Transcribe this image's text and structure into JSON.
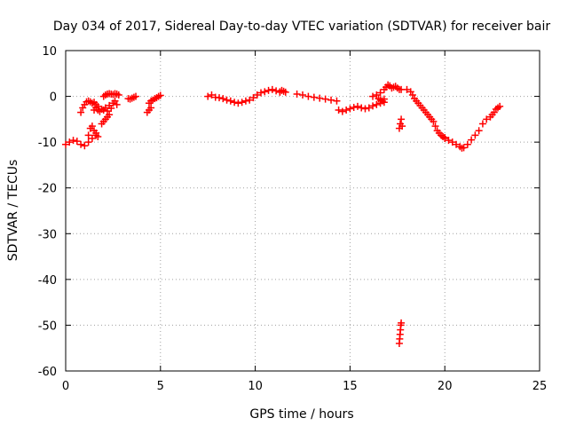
{
  "chart_data": {
    "type": "scatter",
    "title": "Day 034 of 2017, Sidereal Day-to-day VTEC variation (SDTVAR) for receiver bair",
    "xlabel": "GPS time / hours",
    "ylabel": "SDTVAR / TECUs",
    "xlim": [
      0,
      25
    ],
    "ylim": [
      -60,
      10
    ],
    "xticks": [
      0,
      5,
      10,
      15,
      20,
      25
    ],
    "yticks": [
      10,
      0,
      -10,
      -20,
      -30,
      -40,
      -50,
      -60
    ],
    "xtick_labels": [
      "0",
      "5",
      "10",
      "15",
      "20",
      "25"
    ],
    "ytick_labels": [
      "10",
      "0",
      "-10",
      "-20",
      "-30",
      "-40",
      "-50",
      "-60"
    ],
    "grid": true,
    "marker": "+",
    "color": "#ff0000",
    "series_segments": [
      [
        [
          0.0,
          -10.5
        ],
        [
          0.2,
          -10.0
        ],
        [
          0.4,
          -9.6
        ],
        [
          0.6,
          -9.8
        ],
        [
          0.8,
          -10.5
        ],
        [
          1.0,
          -10.8
        ],
        [
          1.2,
          -10.0
        ],
        [
          1.4,
          -9.2
        ],
        [
          1.6,
          -8.5
        ],
        [
          1.7,
          -8.8
        ]
      ],
      [
        [
          0.8,
          -3.5
        ],
        [
          0.9,
          -2.5
        ],
        [
          1.0,
          -1.8
        ],
        [
          1.1,
          -1.2
        ],
        [
          1.2,
          -1.0
        ],
        [
          1.3,
          -1.2
        ],
        [
          1.4,
          -1.5
        ],
        [
          1.5,
          -1.3
        ],
        [
          1.6,
          -1.8
        ],
        [
          1.7,
          -2.2
        ]
      ],
      [
        [
          1.2,
          -8.5
        ],
        [
          1.3,
          -7.0
        ],
        [
          1.4,
          -6.5
        ],
        [
          1.5,
          -7.5
        ],
        [
          1.6,
          -8.0
        ]
      ],
      [
        [
          1.5,
          -3.0
        ],
        [
          1.6,
          -2.5
        ],
        [
          1.7,
          -3.0
        ],
        [
          1.8,
          -3.3
        ],
        [
          1.9,
          -2.8
        ],
        [
          2.0,
          -3.0
        ],
        [
          2.1,
          -2.5
        ],
        [
          2.2,
          -3.2
        ],
        [
          2.3,
          -2.0
        ],
        [
          2.4,
          -2.6
        ],
        [
          2.5,
          -1.5
        ],
        [
          2.6,
          -1.0
        ],
        [
          2.7,
          -1.8
        ]
      ],
      [
        [
          1.9,
          -6.0
        ],
        [
          2.0,
          -5.5
        ],
        [
          2.1,
          -5.0
        ],
        [
          2.2,
          -4.5
        ],
        [
          2.3,
          -4.0
        ]
      ],
      [
        [
          2.0,
          0.0
        ],
        [
          2.1,
          0.3
        ],
        [
          2.2,
          0.5
        ],
        [
          2.3,
          0.6
        ],
        [
          2.4,
          0.5
        ],
        [
          2.5,
          0.4
        ],
        [
          2.6,
          0.6
        ],
        [
          2.7,
          0.5
        ],
        [
          2.8,
          0.3
        ]
      ],
      [
        [
          3.3,
          -0.5
        ],
        [
          3.4,
          -0.6
        ],
        [
          3.5,
          -0.4
        ],
        [
          3.6,
          -0.2
        ],
        [
          3.7,
          0.0
        ]
      ],
      [
        [
          4.3,
          -3.5
        ],
        [
          4.4,
          -3.0
        ],
        [
          4.5,
          -2.5
        ],
        [
          4.4,
          -1.5
        ],
        [
          4.5,
          -1.0
        ],
        [
          4.6,
          -0.8
        ],
        [
          4.7,
          -0.5
        ],
        [
          4.8,
          -0.3
        ],
        [
          4.9,
          0.0
        ],
        [
          5.0,
          0.2
        ]
      ],
      [
        [
          7.5,
          0.0
        ],
        [
          7.7,
          0.3
        ],
        [
          7.9,
          -0.2
        ],
        [
          8.1,
          -0.3
        ],
        [
          8.3,
          -0.5
        ],
        [
          8.5,
          -0.8
        ],
        [
          8.7,
          -1.0
        ],
        [
          8.9,
          -1.3
        ],
        [
          9.1,
          -1.5
        ],
        [
          9.3,
          -1.3
        ],
        [
          9.5,
          -1.0
        ],
        [
          9.7,
          -0.8
        ],
        [
          9.9,
          -0.3
        ],
        [
          10.1,
          0.3
        ],
        [
          10.3,
          0.8
        ],
        [
          10.5,
          1.0
        ],
        [
          10.7,
          1.3
        ],
        [
          10.9,
          1.5
        ],
        [
          11.1,
          1.2
        ],
        [
          11.3,
          0.9
        ]
      ],
      [
        [
          11.3,
          1.0
        ],
        [
          11.4,
          1.3
        ],
        [
          11.5,
          1.1
        ],
        [
          11.6,
          0.9
        ]
      ],
      [
        [
          12.2,
          0.5
        ],
        [
          12.5,
          0.3
        ],
        [
          12.8,
          0.0
        ],
        [
          13.1,
          -0.2
        ],
        [
          13.4,
          -0.4
        ],
        [
          13.7,
          -0.6
        ],
        [
          14.0,
          -0.8
        ],
        [
          14.3,
          -1.0
        ]
      ],
      [
        [
          14.4,
          -3.0
        ],
        [
          14.6,
          -3.3
        ],
        [
          14.8,
          -3.0
        ],
        [
          15.0,
          -2.7
        ],
        [
          15.2,
          -2.4
        ],
        [
          15.4,
          -2.2
        ],
        [
          15.6,
          -2.5
        ],
        [
          15.8,
          -2.7
        ],
        [
          16.0,
          -2.5
        ],
        [
          16.2,
          -2.1
        ],
        [
          16.4,
          -1.8
        ],
        [
          16.6,
          -1.5
        ],
        [
          16.8,
          -1.3
        ]
      ],
      [
        [
          16.2,
          0.0
        ],
        [
          16.4,
          0.3
        ],
        [
          16.6,
          0.8
        ],
        [
          16.8,
          1.5
        ],
        [
          16.9,
          2.0
        ],
        [
          17.0,
          2.5
        ],
        [
          17.1,
          2.3
        ],
        [
          17.2,
          1.8
        ],
        [
          17.3,
          2.0
        ],
        [
          17.4,
          2.2
        ],
        [
          17.5,
          1.8
        ],
        [
          17.6,
          1.5
        ],
        [
          17.7,
          1.5
        ]
      ],
      [
        [
          16.5,
          -0.5
        ],
        [
          16.6,
          -0.8
        ],
        [
          16.7,
          -1.0
        ],
        [
          16.8,
          -0.6
        ]
      ],
      [
        [
          17.6,
          -7.0
        ],
        [
          17.65,
          -6.0
        ],
        [
          17.7,
          -5.0
        ],
        [
          17.75,
          -6.5
        ]
      ],
      [
        [
          17.6,
          -54.0
        ],
        [
          17.62,
          -53.0
        ],
        [
          17.64,
          -52.0
        ],
        [
          17.66,
          -51.0
        ],
        [
          17.68,
          -50.0
        ],
        [
          17.7,
          -49.5
        ]
      ],
      [
        [
          18.0,
          1.5
        ],
        [
          18.2,
          1.0
        ],
        [
          18.3,
          0.3
        ],
        [
          18.4,
          -0.5
        ],
        [
          18.5,
          -1.0
        ],
        [
          18.6,
          -1.5
        ],
        [
          18.7,
          -2.0
        ],
        [
          18.8,
          -2.5
        ],
        [
          18.9,
          -3.0
        ],
        [
          19.0,
          -3.5
        ],
        [
          19.1,
          -4.0
        ],
        [
          19.2,
          -4.5
        ],
        [
          19.3,
          -5.0
        ],
        [
          19.4,
          -5.5
        ],
        [
          19.5,
          -6.5
        ],
        [
          19.6,
          -7.5
        ],
        [
          19.7,
          -8.0
        ],
        [
          19.8,
          -8.5
        ],
        [
          19.9,
          -8.8
        ],
        [
          20.0,
          -9.0
        ]
      ],
      [
        [
          20.0,
          -9.2
        ],
        [
          20.2,
          -9.6
        ],
        [
          20.4,
          -10.0
        ],
        [
          20.6,
          -10.5
        ],
        [
          20.8,
          -11.0
        ],
        [
          20.9,
          -11.3
        ],
        [
          21.0,
          -11.2
        ],
        [
          21.2,
          -10.5
        ],
        [
          21.4,
          -9.5
        ],
        [
          21.6,
          -8.5
        ],
        [
          21.8,
          -7.5
        ],
        [
          22.0,
          -6.0
        ],
        [
          22.2,
          -5.0
        ]
      ],
      [
        [
          22.4,
          -4.5
        ],
        [
          22.5,
          -4.0
        ],
        [
          22.6,
          -3.5
        ],
        [
          22.7,
          -2.8
        ],
        [
          22.8,
          -2.5
        ],
        [
          22.9,
          -2.2
        ]
      ]
    ]
  }
}
